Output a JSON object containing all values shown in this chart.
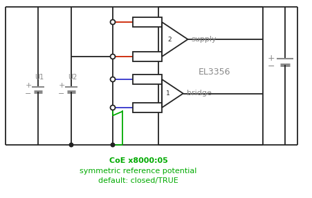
{
  "bg_color": "#ffffff",
  "line_color": "#222222",
  "gray_color": "#888888",
  "red_color": "#cc2200",
  "blue_color": "#3333cc",
  "green_color": "#00aa00",
  "text_el3356": "EL3356",
  "text_supply": "supply",
  "text_bridge": "bridge",
  "text_u1": "U1",
  "text_u2": "U2",
  "text_coe": "CoE x8000:05",
  "text_sym": "symmetric reference potential",
  "text_default": "default: closed/TRUE",
  "figsize": [
    4.51,
    2.87
  ],
  "dpi": 100
}
